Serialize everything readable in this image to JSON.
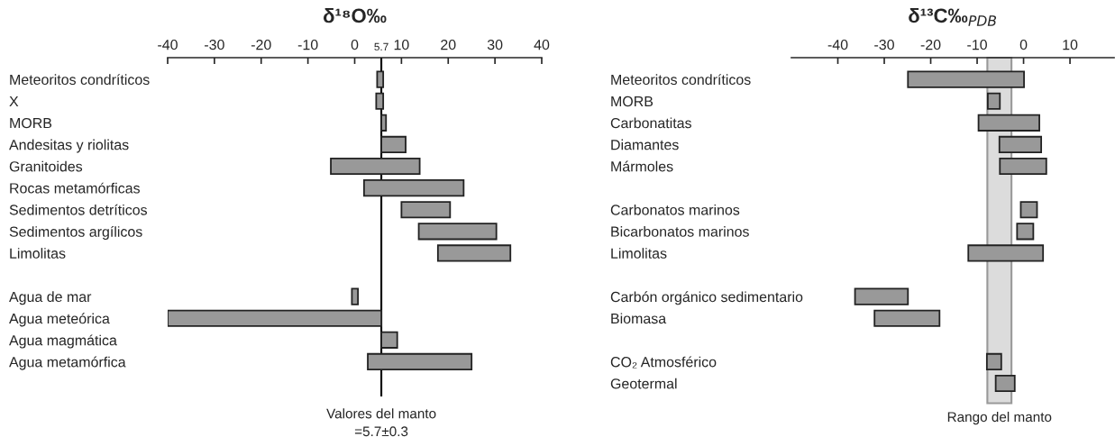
{
  "chart_data": [
    {
      "type": "bar",
      "orientation": "horizontal",
      "title": "δ¹⁸O‰",
      "categories": [
        "Meteoritos condríticos",
        "X",
        "MORB",
        "Andesitas y riolitas",
        "Granitoides",
        "Rocas metamórficas",
        "Sedimentos detríticos",
        "Sedimentos argílicos",
        "Limolitas",
        null,
        "Agua de mar",
        "Agua meteórica",
        "Agua magmática",
        "Agua metamórfica"
      ],
      "base": [
        4.8,
        4.6,
        5.7,
        5.7,
        -5.1,
        2.0,
        10.0,
        13.7,
        17.8,
        null,
        -0.6,
        -40,
        5.7,
        2.8
      ],
      "values": [
        1.3,
        1.5,
        1.0,
        5.2,
        19.0,
        21.3,
        10.4,
        16.6,
        15.5,
        null,
        1.3,
        45.7,
        3.4,
        22.2
      ],
      "color": "#999999",
      "xlim": [
        -40,
        40
      ],
      "xticks": [
        -40,
        -30,
        -20,
        -10,
        0,
        5.7,
        10,
        20,
        30,
        40
      ],
      "ref_lines": [
        {
          "axis": "x",
          "value": 5.7,
          "label": "Valores del manto\n=5.7±0.3",
          "color": "#000000"
        }
      ]
    },
    {
      "type": "bar",
      "orientation": "horizontal",
      "title": "δ¹³C‰$_{PDB}$",
      "categories": [
        "Meteoritos condríticos",
        "MORB",
        "Carbonatitas",
        "Diamantes",
        "Mármoles",
        null,
        "Carbonatos marinos",
        "Bicarbonatos marinos",
        "Limolitas",
        null,
        "Carbón orgánico sedimentario",
        "Biomasa",
        null,
        "CO₂ Atmosférico",
        "Geotermal"
      ],
      "base": [
        -24.9,
        -7.7,
        -9.7,
        -5.2,
        -5.1,
        null,
        -0.6,
        -1.4,
        -11.9,
        null,
        -36.3,
        -32.1,
        null,
        -7.9,
        -6.0
      ],
      "values": [
        25.0,
        2.6,
        13.1,
        9.0,
        10.0,
        null,
        3.5,
        3.5,
        16.1,
        null,
        11.4,
        14.0,
        null,
        3.1,
        4.1
      ],
      "color": "#999999",
      "xlim": [
        -50,
        19.5
      ],
      "xticks": [
        -40,
        -30,
        -20,
        -10,
        0,
        10
      ],
      "bands": [
        {
          "axis": "x",
          "from": -7.8,
          "to": -2.6,
          "label": "Rango del manto",
          "color": "#dcdcdc"
        }
      ]
    }
  ]
}
